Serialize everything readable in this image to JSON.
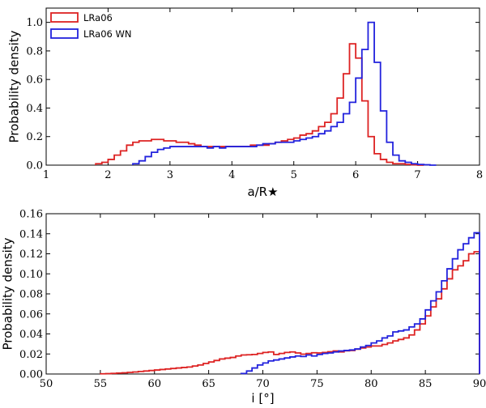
{
  "chart_data": [
    {
      "type": "line",
      "title": "",
      "xlabel": "a/R★",
      "ylabel": "Probability density",
      "xlim": [
        1,
        8
      ],
      "ylim": [
        0,
        1.1
      ],
      "xticks": [
        1,
        2,
        3,
        4,
        5,
        6,
        7,
        8
      ],
      "yticks": [
        0.0,
        0.2,
        0.4,
        0.6,
        0.8,
        1.0
      ],
      "grid": false,
      "legend_position": "top-left",
      "bin_width": 0.1,
      "series": [
        {
          "name": "LRa06",
          "color": "#dd2222",
          "x": [
            1.8,
            1.9,
            2.0,
            2.1,
            2.2,
            2.3,
            2.4,
            2.5,
            2.6,
            2.7,
            2.8,
            2.9,
            3.0,
            3.1,
            3.2,
            3.3,
            3.4,
            3.5,
            3.6,
            3.7,
            3.8,
            3.9,
            4.0,
            4.1,
            4.2,
            4.3,
            4.4,
            4.5,
            4.6,
            4.7,
            4.8,
            4.9,
            5.0,
            5.1,
            5.2,
            5.3,
            5.4,
            5.5,
            5.6,
            5.7,
            5.8,
            5.9,
            6.0,
            6.1,
            6.2,
            6.3,
            6.4,
            6.5,
            6.6,
            6.7,
            6.8,
            6.9,
            7.0
          ],
          "values": [
            0.01,
            0.02,
            0.04,
            0.07,
            0.1,
            0.14,
            0.16,
            0.17,
            0.17,
            0.18,
            0.18,
            0.17,
            0.17,
            0.16,
            0.16,
            0.15,
            0.14,
            0.13,
            0.13,
            0.13,
            0.13,
            0.13,
            0.13,
            0.13,
            0.13,
            0.14,
            0.14,
            0.14,
            0.15,
            0.16,
            0.17,
            0.18,
            0.19,
            0.21,
            0.22,
            0.24,
            0.27,
            0.3,
            0.36,
            0.47,
            0.64,
            0.85,
            0.75,
            0.45,
            0.2,
            0.08,
            0.04,
            0.02,
            0.01,
            0.01,
            0.005,
            0.003,
            0.0
          ]
        },
        {
          "name": "LRa06 WN",
          "color": "#2222dd",
          "x": [
            2.4,
            2.5,
            2.6,
            2.7,
            2.8,
            2.9,
            3.0,
            3.1,
            3.2,
            3.3,
            3.4,
            3.5,
            3.6,
            3.7,
            3.8,
            3.9,
            4.0,
            4.1,
            4.2,
            4.3,
            4.4,
            4.5,
            4.6,
            4.7,
            4.8,
            4.9,
            5.0,
            5.1,
            5.2,
            5.3,
            5.4,
            5.5,
            5.6,
            5.7,
            5.8,
            5.9,
            6.0,
            6.1,
            6.2,
            6.3,
            6.4,
            6.5,
            6.6,
            6.7,
            6.8,
            6.9,
            7.0,
            7.1,
            7.2
          ],
          "values": [
            0.01,
            0.03,
            0.06,
            0.09,
            0.11,
            0.12,
            0.13,
            0.13,
            0.13,
            0.13,
            0.13,
            0.13,
            0.12,
            0.13,
            0.12,
            0.13,
            0.13,
            0.13,
            0.13,
            0.13,
            0.14,
            0.15,
            0.15,
            0.16,
            0.16,
            0.16,
            0.17,
            0.18,
            0.19,
            0.2,
            0.22,
            0.24,
            0.27,
            0.3,
            0.36,
            0.44,
            0.61,
            0.81,
            1.0,
            0.72,
            0.38,
            0.16,
            0.07,
            0.03,
            0.02,
            0.01,
            0.005,
            0.003,
            0.0
          ]
        }
      ]
    },
    {
      "type": "line",
      "title": "",
      "xlabel": "i [°]",
      "ylabel": "Probability density",
      "xlim": [
        50,
        90
      ],
      "ylim": [
        0,
        0.16
      ],
      "xticks": [
        50,
        55,
        60,
        65,
        70,
        75,
        80,
        85,
        90
      ],
      "yticks": [
        0.0,
        0.02,
        0.04,
        0.06,
        0.08,
        0.1,
        0.12,
        0.14,
        0.16
      ],
      "grid": false,
      "bin_width": 0.5,
      "series": [
        {
          "name": "LRa06",
          "color": "#dd2222",
          "x": [
            55.0,
            55.5,
            56.0,
            56.5,
            57.0,
            57.5,
            58.0,
            58.5,
            59.0,
            59.5,
            60.0,
            60.5,
            61.0,
            61.5,
            62.0,
            62.5,
            63.0,
            63.5,
            64.0,
            64.5,
            65.0,
            65.5,
            66.0,
            66.5,
            67.0,
            67.5,
            68.0,
            68.5,
            69.0,
            69.5,
            70.0,
            70.5,
            71.0,
            71.5,
            72.0,
            72.5,
            73.0,
            73.5,
            74.0,
            74.5,
            75.0,
            75.5,
            76.0,
            76.5,
            77.0,
            77.5,
            78.0,
            78.5,
            79.0,
            79.5,
            80.0,
            80.5,
            81.0,
            81.5,
            82.0,
            82.5,
            83.0,
            83.5,
            84.0,
            84.5,
            85.0,
            85.5,
            86.0,
            86.5,
            87.0,
            87.5,
            88.0,
            88.5,
            89.0,
            89.5
          ],
          "values": [
            0.0002,
            0.0004,
            0.0006,
            0.0009,
            0.0012,
            0.0016,
            0.002,
            0.0025,
            0.003,
            0.0035,
            0.004,
            0.0045,
            0.005,
            0.0055,
            0.006,
            0.0065,
            0.007,
            0.008,
            0.009,
            0.0105,
            0.012,
            0.0135,
            0.015,
            0.0158,
            0.0165,
            0.018,
            0.019,
            0.0192,
            0.0195,
            0.0205,
            0.0215,
            0.022,
            0.0195,
            0.0205,
            0.0215,
            0.022,
            0.021,
            0.0198,
            0.0205,
            0.0212,
            0.021,
            0.0215,
            0.0222,
            0.023,
            0.022,
            0.0232,
            0.0235,
            0.0248,
            0.026,
            0.027,
            0.028,
            0.028,
            0.0295,
            0.031,
            0.033,
            0.0345,
            0.036,
            0.039,
            0.044,
            0.05,
            0.058,
            0.067,
            0.075,
            0.085,
            0.095,
            0.104,
            0.108,
            0.113,
            0.12,
            0.122
          ]
        },
        {
          "name": "LRa06 WN",
          "color": "#2222dd",
          "x": [
            68.0,
            68.5,
            69.0,
            69.5,
            70.0,
            70.5,
            71.0,
            71.5,
            72.0,
            72.5,
            73.0,
            73.5,
            74.0,
            74.5,
            75.0,
            75.5,
            76.0,
            76.5,
            77.0,
            77.5,
            78.0,
            78.5,
            79.0,
            79.5,
            80.0,
            80.5,
            81.0,
            81.5,
            82.0,
            82.5,
            83.0,
            83.5,
            84.0,
            84.5,
            85.0,
            85.5,
            86.0,
            86.5,
            87.0,
            87.5,
            88.0,
            88.5,
            89.0,
            89.5
          ],
          "values": [
            0.0005,
            0.003,
            0.006,
            0.009,
            0.011,
            0.013,
            0.014,
            0.015,
            0.016,
            0.017,
            0.018,
            0.0175,
            0.019,
            0.018,
            0.0195,
            0.0205,
            0.021,
            0.022,
            0.023,
            0.0235,
            0.024,
            0.025,
            0.027,
            0.0285,
            0.031,
            0.033,
            0.036,
            0.038,
            0.042,
            0.043,
            0.044,
            0.047,
            0.05,
            0.055,
            0.064,
            0.073,
            0.082,
            0.093,
            0.105,
            0.115,
            0.124,
            0.13,
            0.136,
            0.141
          ]
        }
      ]
    }
  ]
}
